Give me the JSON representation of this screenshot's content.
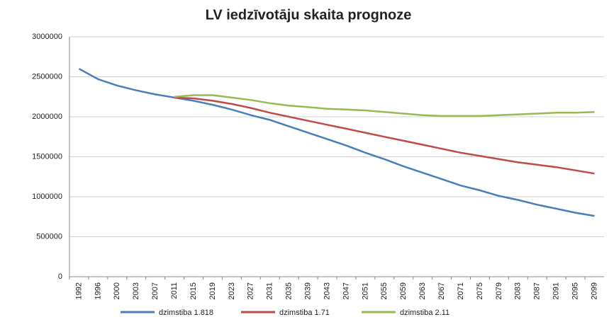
{
  "chart_data": {
    "type": "line",
    "title": "LV iedzīvotāju skaita prognoze",
    "categories": [
      "1992",
      "1996",
      "2000",
      "2003",
      "2007",
      "2011",
      "2015",
      "2019",
      "2023",
      "2027",
      "2031",
      "2035",
      "2039",
      "2043",
      "2047",
      "2051",
      "2055",
      "2059",
      "2063",
      "2067",
      "2071",
      "2075",
      "2079",
      "2083",
      "2087",
      "2091",
      "2095",
      "2099"
    ],
    "series": [
      {
        "name": "dzimstiba 1.818",
        "color": "#4a7ebb",
        "values": [
          2600000,
          2470000,
          2390000,
          2330000,
          2280000,
          2240000,
          2200000,
          2150000,
          2090000,
          2020000,
          1960000,
          1880000,
          1800000,
          1720000,
          1640000,
          1550000,
          1470000,
          1380000,
          1300000,
          1220000,
          1140000,
          1080000,
          1010000,
          960000,
          900000,
          850000,
          800000,
          760000
        ]
      },
      {
        "name": "dzimstiba 1.71",
        "color": "#be4b48",
        "values": [
          null,
          null,
          null,
          null,
          null,
          2240000,
          2230000,
          2200000,
          2160000,
          2110000,
          2050000,
          2000000,
          1950000,
          1900000,
          1850000,
          1800000,
          1750000,
          1700000,
          1650000,
          1600000,
          1550000,
          1510000,
          1470000,
          1430000,
          1400000,
          1370000,
          1330000,
          1290000
        ]
      },
      {
        "name": "dzimstiba 2.11",
        "color": "#98b954",
        "values": [
          null,
          null,
          null,
          null,
          null,
          2250000,
          2270000,
          2270000,
          2240000,
          2210000,
          2170000,
          2140000,
          2120000,
          2100000,
          2090000,
          2080000,
          2060000,
          2040000,
          2020000,
          2010000,
          2010000,
          2010000,
          2020000,
          2030000,
          2040000,
          2050000,
          2050000,
          2060000
        ]
      }
    ],
    "ylim": [
      0,
      3000000
    ],
    "yticks": [
      0,
      500000,
      1000000,
      1500000,
      2000000,
      2500000,
      3000000
    ],
    "grid": true,
    "legend": "bottom"
  }
}
